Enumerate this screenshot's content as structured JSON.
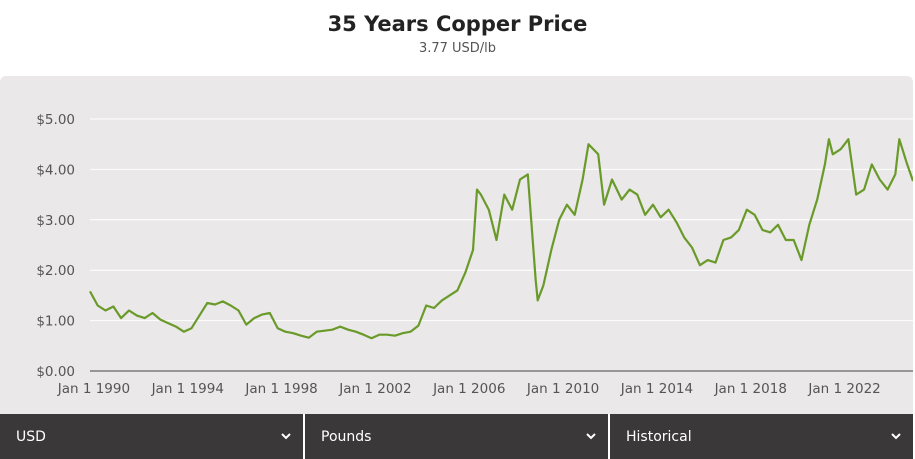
{
  "header": {
    "title": "35 Years Copper Price",
    "subtitle": "3.77 USD/lb"
  },
  "controls": {
    "currency": "USD",
    "unit": "Pounds",
    "range": "Historical"
  },
  "colors": {
    "line": "#6a9a2a",
    "panel": "#eae8e8",
    "grid": "#ffffff",
    "control_bg": "#3a3838"
  },
  "icons": [
    "chevron-down-icon"
  ],
  "chart_data": {
    "type": "line",
    "title": "35 Years Copper Price",
    "subtitle": "3.77 USD/lb",
    "xlabel": "",
    "ylabel": "",
    "y_tick_labels": [
      "$0.00",
      "$1.00",
      "$2.00",
      "$3.00",
      "$4.00",
      "$5.00"
    ],
    "y_ticks": [
      0,
      1,
      2,
      3,
      4,
      5
    ],
    "x_tick_labels": [
      "Jan 1 1990",
      "Jan 1 1994",
      "Jan 1 1998",
      "Jan 1 2002",
      "Jan 1 2006",
      "Jan 1 2010",
      "Jan 1 2014",
      "Jan 1 2018",
      "Jan 1 2022"
    ],
    "x_ticks": [
      "1990-01-01",
      "1994-01-01",
      "1998-01-01",
      "2002-01-01",
      "2006-01-01",
      "2010-01-01",
      "2014-01-01",
      "2018-01-01",
      "2022-01-01"
    ],
    "xlim": [
      "1989-11-01",
      "2024-12-01"
    ],
    "ylim": [
      0,
      5
    ],
    "grid": true,
    "series": [
      {
        "name": "",
        "x": [
          "1989-11-01",
          "1990-03-01",
          "1990-07-01",
          "1990-11-01",
          "1991-03-01",
          "1991-07-01",
          "1991-11-01",
          "1992-03-01",
          "1992-07-01",
          "1992-11-01",
          "1993-03-01",
          "1993-07-01",
          "1993-11-01",
          "1994-03-01",
          "1994-07-01",
          "1994-11-01",
          "1995-03-01",
          "1995-07-01",
          "1995-11-01",
          "1996-03-01",
          "1996-07-01",
          "1996-11-01",
          "1997-03-01",
          "1997-07-01",
          "1997-11-01",
          "1998-03-01",
          "1998-07-01",
          "1998-11-01",
          "1999-03-01",
          "1999-07-01",
          "1999-11-01",
          "2000-03-01",
          "2000-07-01",
          "2000-11-01",
          "2001-03-01",
          "2001-07-01",
          "2001-11-01",
          "2002-03-01",
          "2002-07-01",
          "2002-11-01",
          "2003-03-01",
          "2003-07-01",
          "2003-11-01",
          "2004-03-01",
          "2004-07-01",
          "2004-11-01",
          "2005-03-01",
          "2005-07-01",
          "2005-11-01",
          "2006-03-01",
          "2006-05-01",
          "2006-07-01",
          "2006-11-01",
          "2007-03-01",
          "2007-07-01",
          "2007-11-01",
          "2008-03-01",
          "2008-07-01",
          "2008-11-01",
          "2008-12-01",
          "2009-03-01",
          "2009-07-01",
          "2009-11-01",
          "2010-03-01",
          "2010-07-01",
          "2010-11-01",
          "2011-02-01",
          "2011-07-01",
          "2011-10-01",
          "2012-02-01",
          "2012-07-01",
          "2012-11-01",
          "2013-03-01",
          "2013-07-01",
          "2013-11-01",
          "2014-03-01",
          "2014-07-01",
          "2014-11-01",
          "2015-03-01",
          "2015-07-01",
          "2015-11-01",
          "2016-03-01",
          "2016-07-01",
          "2016-11-01",
          "2017-03-01",
          "2017-07-01",
          "2017-11-01",
          "2018-03-01",
          "2018-07-01",
          "2018-11-01",
          "2019-03-01",
          "2019-07-01",
          "2019-11-01",
          "2020-03-01",
          "2020-07-01",
          "2020-11-01",
          "2021-03-01",
          "2021-05-01",
          "2021-07-01",
          "2021-11-01",
          "2022-03-01",
          "2022-07-01",
          "2022-11-01",
          "2023-03-01",
          "2023-07-01",
          "2023-11-01",
          "2024-03-01",
          "2024-05-01",
          "2024-09-01",
          "2024-12-01"
        ],
        "values": [
          1.58,
          1.3,
          1.2,
          1.28,
          1.05,
          1.2,
          1.1,
          1.05,
          1.15,
          1.02,
          0.95,
          0.88,
          0.78,
          0.85,
          1.1,
          1.35,
          1.32,
          1.38,
          1.3,
          1.2,
          0.92,
          1.05,
          1.12,
          1.15,
          0.85,
          0.78,
          0.75,
          0.7,
          0.66,
          0.78,
          0.8,
          0.82,
          0.88,
          0.82,
          0.78,
          0.72,
          0.65,
          0.72,
          0.72,
          0.7,
          0.75,
          0.78,
          0.9,
          1.3,
          1.25,
          1.4,
          1.5,
          1.6,
          1.95,
          2.4,
          3.6,
          3.5,
          3.2,
          2.6,
          3.5,
          3.2,
          3.8,
          3.9,
          1.8,
          1.4,
          1.7,
          2.4,
          3.0,
          3.3,
          3.1,
          3.8,
          4.5,
          4.3,
          3.3,
          3.8,
          3.4,
          3.6,
          3.5,
          3.1,
          3.3,
          3.05,
          3.2,
          2.95,
          2.65,
          2.45,
          2.1,
          2.2,
          2.15,
          2.6,
          2.65,
          2.8,
          3.2,
          3.1,
          2.8,
          2.75,
          2.9,
          2.6,
          2.6,
          2.2,
          2.9,
          3.4,
          4.1,
          4.6,
          4.3,
          4.4,
          4.6,
          3.5,
          3.6,
          4.1,
          3.8,
          3.6,
          3.9,
          4.6,
          4.1,
          3.77
        ]
      }
    ]
  }
}
